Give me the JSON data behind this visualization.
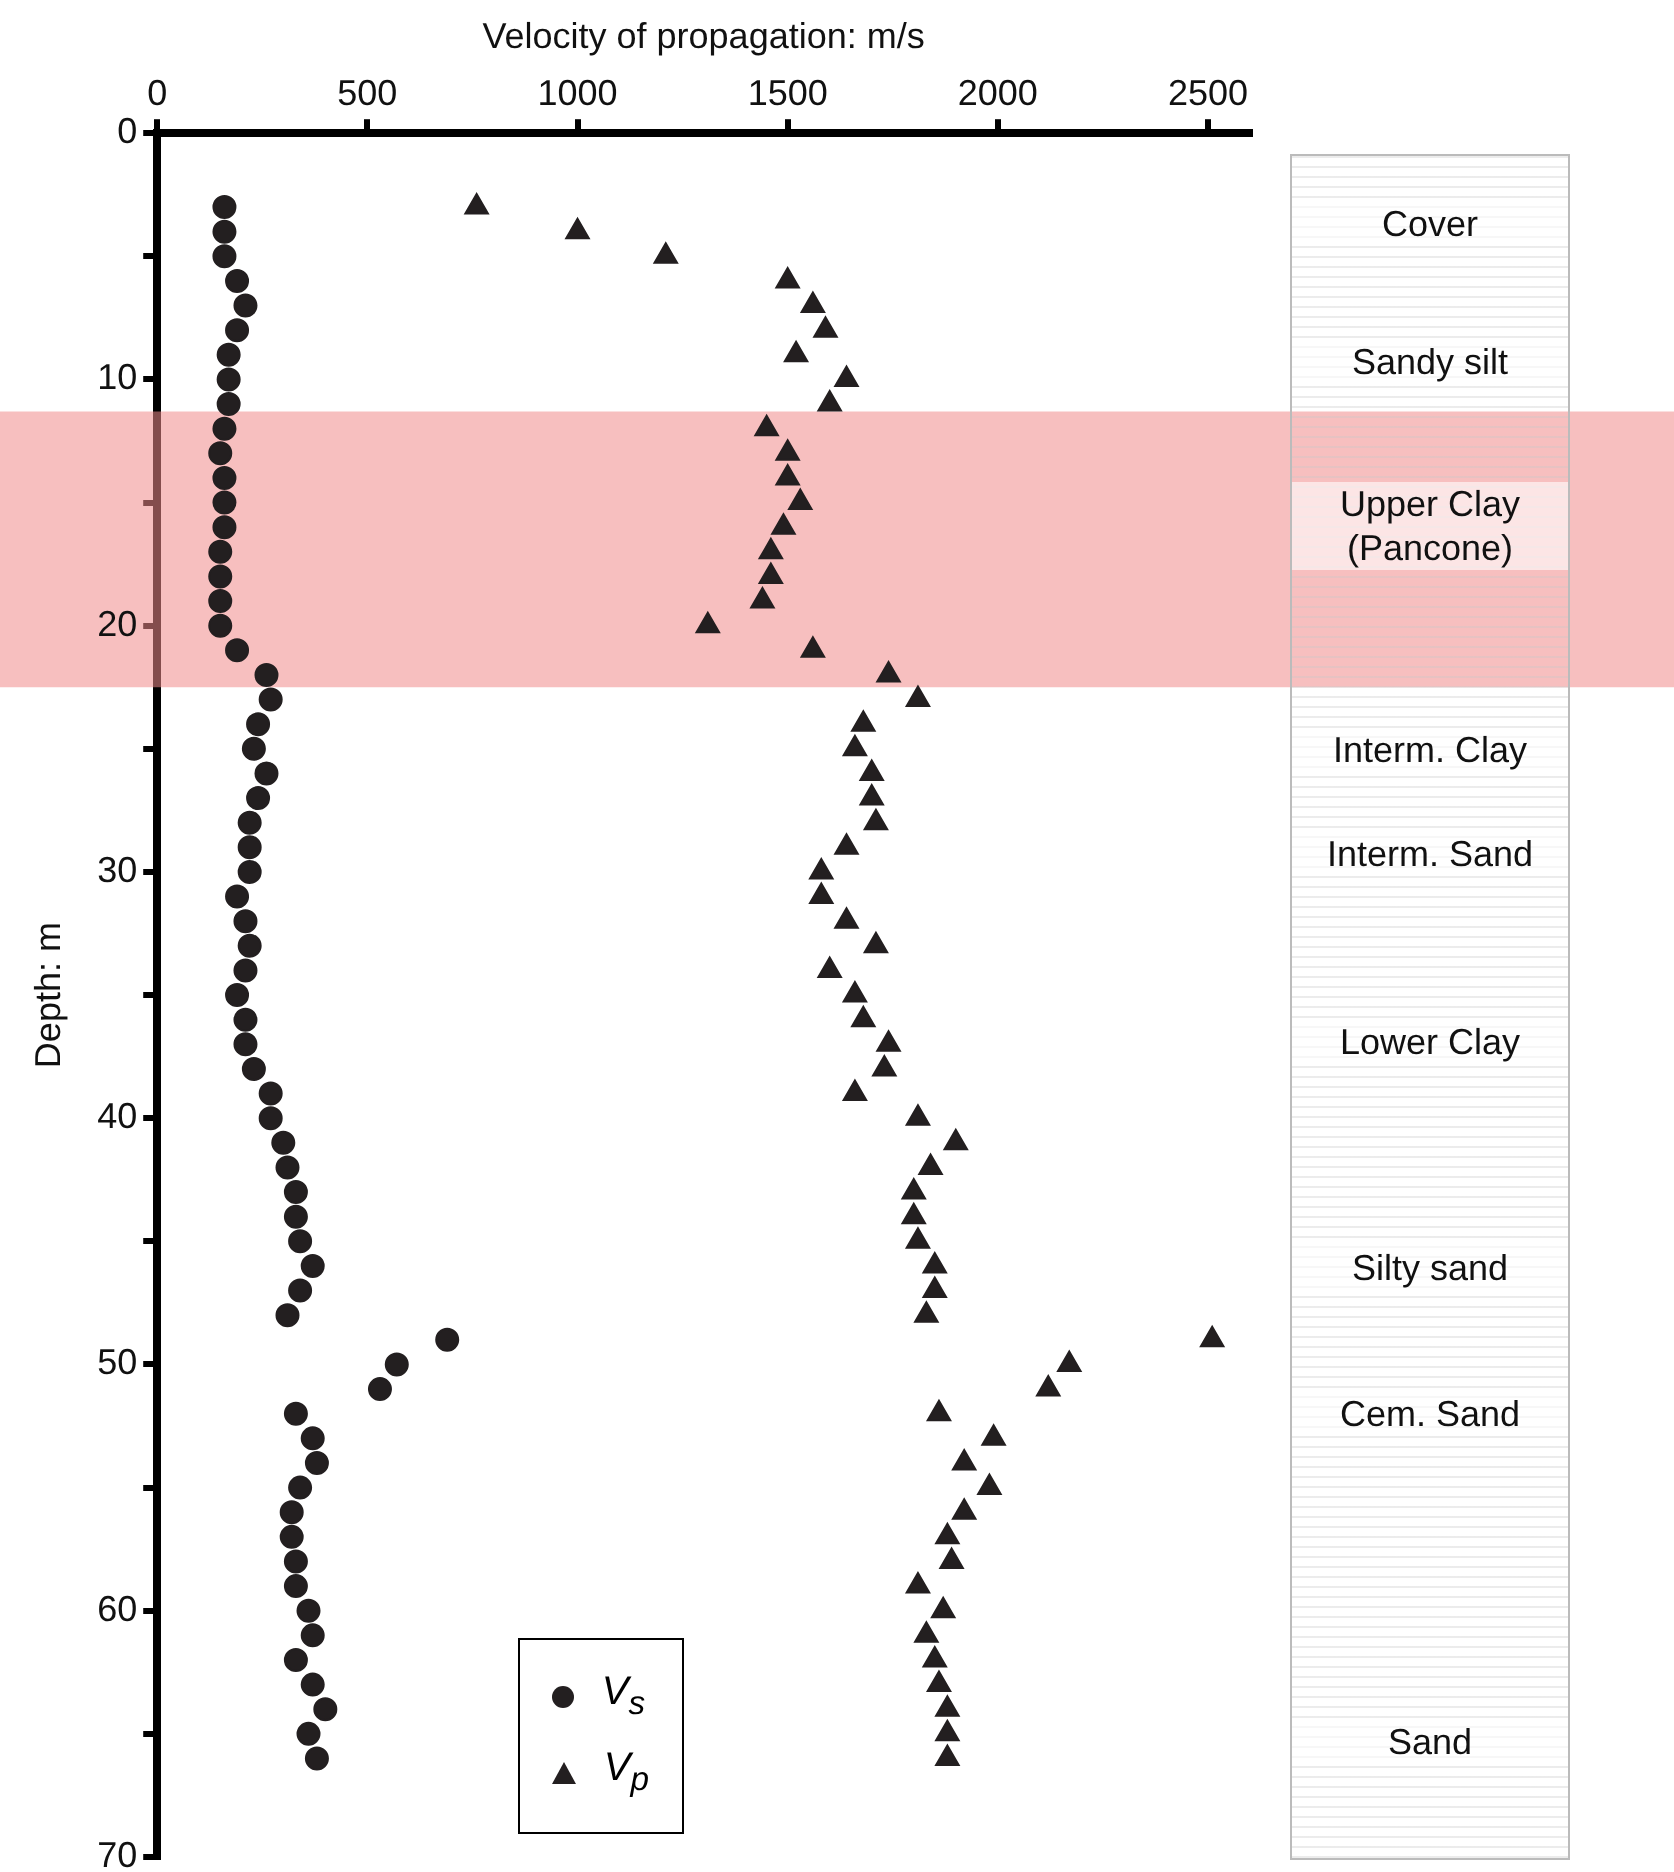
{
  "chart_data": {
    "type": "scatter",
    "xlabel": "Velocity of propagation: m/s",
    "ylabel": "Depth: m",
    "xlim": [
      0,
      2600
    ],
    "xticks": [
      0,
      500,
      1000,
      1500,
      2000,
      2500
    ],
    "ylim": [
      70,
      0
    ],
    "yticks": [
      0,
      {
        "value": 5,
        "label": null
      },
      10,
      {
        "value": 15,
        "label": null
      },
      20,
      {
        "value": 25,
        "label": null
      },
      30,
      {
        "value": 35,
        "label": null
      },
      40,
      {
        "value": 45,
        "label": null
      },
      50,
      {
        "value": 55,
        "label": null
      },
      60,
      {
        "value": 65,
        "label": null
      },
      70
    ],
    "grid": false,
    "legend": "bottom",
    "series": [
      {
        "name": "V$_{s}$",
        "color": "#231f20",
        "marker": "circle",
        "x": [
          160,
          160,
          160,
          190,
          210,
          190,
          170,
          170,
          170,
          160,
          150,
          160,
          160,
          160,
          150,
          150,
          150,
          150,
          190,
          260,
          270,
          240,
          230,
          260,
          240,
          220,
          220,
          220,
          190,
          210,
          220,
          210,
          190,
          210,
          210,
          230,
          270,
          270,
          300,
          310,
          330,
          330,
          340,
          370,
          340,
          310,
          690,
          570,
          530,
          330,
          370,
          380,
          340,
          320,
          320,
          330,
          330,
          360,
          370,
          330,
          370,
          400,
          360,
          380
        ],
        "values": [
          3,
          4,
          5,
          6,
          7,
          8,
          9,
          10,
          11,
          12,
          13,
          14,
          15,
          16,
          17,
          18,
          19,
          20,
          21,
          22,
          23,
          24,
          25,
          26,
          27,
          28,
          29,
          30,
          31,
          32,
          33,
          34,
          35,
          36,
          37,
          38,
          39,
          40,
          41,
          42,
          43,
          44,
          45,
          46,
          47,
          48,
          49,
          50,
          51,
          52,
          53,
          54,
          55,
          56,
          57,
          58,
          59,
          60,
          61,
          62,
          63,
          64,
          65,
          66
        ]
      },
      {
        "name": "V$_{p}$",
        "color": "#231f20",
        "marker": "triangle",
        "x": [
          760,
          1000,
          1210,
          1500,
          1560,
          1590,
          1520,
          1640,
          1600,
          1450,
          1500,
          1500,
          1530,
          1490,
          1460,
          1460,
          1440,
          1310,
          1560,
          1740,
          1810,
          1680,
          1660,
          1700,
          1700,
          1710,
          1640,
          1580,
          1580,
          1640,
          1710,
          1600,
          1660,
          1680,
          1740,
          1730,
          1660,
          1810,
          1900,
          1840,
          1800,
          1800,
          1810,
          1850,
          1850,
          1830,
          2510,
          2170,
          2120,
          1860,
          1990,
          1920,
          1980,
          1920,
          1880,
          1890,
          1810,
          1870,
          1830,
          1850,
          1860,
          1880,
          1880,
          1880
        ],
        "values": [
          3,
          4,
          5,
          6,
          7,
          8,
          9,
          10,
          11,
          12,
          13,
          14,
          15,
          16,
          17,
          18,
          19,
          20,
          21,
          22,
          23,
          24,
          25,
          26,
          27,
          28,
          29,
          30,
          31,
          32,
          33,
          34,
          35,
          36,
          37,
          38,
          39,
          40,
          41,
          42,
          43,
          44,
          45,
          46,
          47,
          48,
          49,
          50,
          51,
          52,
          53,
          54,
          55,
          56,
          57,
          58,
          59,
          60,
          61,
          62,
          63,
          64,
          65,
          66
        ]
      }
    ],
    "bands": [
      {
        "axis": "y",
        "from": 11.3,
        "to": 22.5,
        "color": "#f08a8a"
      }
    ],
    "annotations": [
      "Cover",
      "Sandy silt",
      "Upper Clay\n(Pancone)",
      "Interm. Clay",
      "Interm. Sand",
      "Lower Clay",
      "Silty sand",
      "Cem. Sand",
      "Sand"
    ]
  }
}
